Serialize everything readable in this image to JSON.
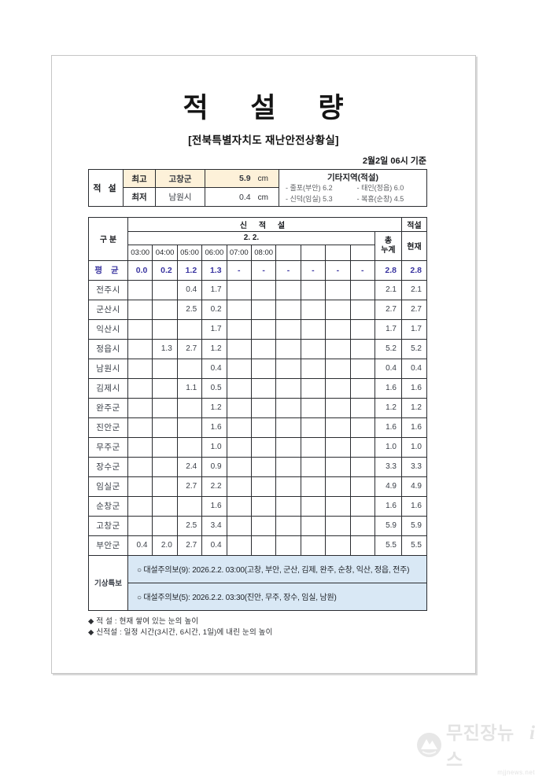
{
  "page": {
    "title": "적 설 량",
    "subtitle": "[전북특별자치도 재난안전상황실]",
    "date_note": "2월2일 06시 기준"
  },
  "summary": {
    "row_header": "적 설",
    "max_label": "최고",
    "max_region": "고창군",
    "max_value": "5.9",
    "min_label": "최저",
    "min_region": "남원시",
    "min_value": "0.4",
    "unit": "cm",
    "others": {
      "title": "기타지역(적설)",
      "items": [
        "- 줄포(부안) 6.2",
        "- 태인(정읍) 6.0",
        "- 신덕(임실) 5.3",
        "- 복흥(순창) 4.5"
      ]
    }
  },
  "main_table": {
    "col_group_label": "구 분",
    "new_snow_label": "신 적 설",
    "snow_label": "적설",
    "date_label": "2. 2.",
    "total_label_top": "총",
    "total_label_bottom": "누계",
    "current_label": "현재",
    "times": [
      "03:00",
      "04:00",
      "05:00",
      "06:00",
      "07:00",
      "08:00",
      "",
      "",
      "",
      ""
    ],
    "rows": [
      {
        "label": "평 균",
        "emphasis": true,
        "values": [
          "0.0",
          "0.2",
          "1.2",
          "1.3",
          "-",
          "-",
          "-",
          "-",
          "-",
          "-"
        ],
        "total": "2.8",
        "current": "2.8"
      },
      {
        "label": "전주시",
        "values": [
          "",
          "",
          "0.4",
          "1.7",
          "",
          "",
          "",
          "",
          "",
          ""
        ],
        "total": "2.1",
        "current": "2.1"
      },
      {
        "label": "군산시",
        "values": [
          "",
          "",
          "2.5",
          "0.2",
          "",
          "",
          "",
          "",
          "",
          ""
        ],
        "total": "2.7",
        "current": "2.7"
      },
      {
        "label": "익산시",
        "values": [
          "",
          "",
          "",
          "1.7",
          "",
          "",
          "",
          "",
          "",
          ""
        ],
        "total": "1.7",
        "current": "1.7"
      },
      {
        "label": "정읍시",
        "values": [
          "",
          "1.3",
          "2.7",
          "1.2",
          "",
          "",
          "",
          "",
          "",
          ""
        ],
        "total": "5.2",
        "current": "5.2"
      },
      {
        "label": "남원시",
        "values": [
          "",
          "",
          "",
          "0.4",
          "",
          "",
          "",
          "",
          "",
          ""
        ],
        "total": "0.4",
        "current": "0.4"
      },
      {
        "label": "김제시",
        "values": [
          "",
          "",
          "1.1",
          "0.5",
          "",
          "",
          "",
          "",
          "",
          ""
        ],
        "total": "1.6",
        "current": "1.6"
      },
      {
        "label": "완주군",
        "values": [
          "",
          "",
          "",
          "1.2",
          "",
          "",
          "",
          "",
          "",
          ""
        ],
        "total": "1.2",
        "current": "1.2"
      },
      {
        "label": "진안군",
        "values": [
          "",
          "",
          "",
          "1.6",
          "",
          "",
          "",
          "",
          "",
          ""
        ],
        "total": "1.6",
        "current": "1.6"
      },
      {
        "label": "무주군",
        "values": [
          "",
          "",
          "",
          "1.0",
          "",
          "",
          "",
          "",
          "",
          ""
        ],
        "total": "1.0",
        "current": "1.0"
      },
      {
        "label": "장수군",
        "values": [
          "",
          "",
          "2.4",
          "0.9",
          "",
          "",
          "",
          "",
          "",
          ""
        ],
        "total": "3.3",
        "current": "3.3"
      },
      {
        "label": "임실군",
        "values": [
          "",
          "",
          "2.7",
          "2.2",
          "",
          "",
          "",
          "",
          "",
          ""
        ],
        "total": "4.9",
        "current": "4.9"
      },
      {
        "label": "순창군",
        "values": [
          "",
          "",
          "",
          "1.6",
          "",
          "",
          "",
          "",
          "",
          ""
        ],
        "total": "1.6",
        "current": "1.6"
      },
      {
        "label": "고창군",
        "values": [
          "",
          "",
          "2.5",
          "3.4",
          "",
          "",
          "",
          "",
          "",
          ""
        ],
        "total": "5.9",
        "current": "5.9"
      },
      {
        "label": "부안군",
        "values": [
          "0.4",
          "2.0",
          "2.7",
          "0.4",
          "",
          "",
          "",
          "",
          "",
          ""
        ],
        "total": "5.5",
        "current": "5.5"
      }
    ]
  },
  "advisory": {
    "label": "기상특보",
    "notices": [
      "○ 대설주의보(9): 2026.2.2. 03:00(고창, 부안, 군산, 김제, 완주, 순창, 익산, 정읍, 전주)",
      "○ 대설주의보(5): 2026.2.2. 03:30(진안, 무주, 장수, 임실, 남원)"
    ]
  },
  "footnotes": [
    "◆ 적  설 : 현재 쌓여 있는 눈의 높이",
    "◆ 신적설 : 일정 시간(3시간, 6시간, 1일)에 내린 눈의 높이"
  ],
  "watermark": {
    "name": "무진장뉴스",
    "suffix": "i",
    "site": "mjjnews.net"
  },
  "colors": {
    "max_highlight_bg": "#fdf1d9",
    "max_text_red": "#c0392b",
    "average_row_blue": "#3a35a0",
    "advisory_bg": "#d9e8f5"
  }
}
